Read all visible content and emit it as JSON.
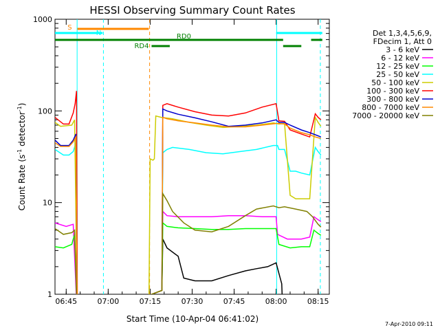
{
  "chart_data": {
    "type": "line",
    "title": "HESSI Observing Summary Count Rates",
    "xlabel": "Start Time (10-Apr-04 06:41:02)",
    "ylabel_main": "Count Rate (s",
    "ylabel_sup1": "-1",
    "ylabel_mid": " detector",
    "ylabel_sup2": "-1",
    "ylabel_end": ")",
    "y_scale": "log",
    "ylim": [
      1,
      1000
    ],
    "xlim_min": [
      6.7,
      8.3
    ],
    "x_unit": "minutes since 06:41:02",
    "xticks": [
      {
        "t": 4,
        "label": "06:45"
      },
      {
        "t": 19,
        "label": "07:00"
      },
      {
        "t": 34,
        "label": "07:15"
      },
      {
        "t": 49,
        "label": "07:30"
      },
      {
        "t": 64,
        "label": "07:45"
      },
      {
        "t": 79,
        "label": "08:00"
      },
      {
        "t": 94,
        "label": "08:15"
      }
    ],
    "yticks": [
      {
        "v": 1,
        "label": "1"
      },
      {
        "v": 10,
        "label": "10"
      },
      {
        "v": 100,
        "label": "100"
      },
      {
        "v": 1000,
        "label": "1000"
      }
    ],
    "legend": {
      "header1": "Det 1,3,4,5,6,9,",
      "header2": "FDecim 1, Att 0",
      "placement": "right"
    },
    "series": [
      {
        "name": "3 - 6 keV",
        "color": "#000000",
        "points": [
          [
            38.2,
            1.1
          ],
          [
            38.5,
            4
          ],
          [
            40,
            3.2
          ],
          [
            44,
            2.6
          ],
          [
            46,
            1.5
          ],
          [
            50,
            1.4
          ],
          [
            56,
            1.4
          ],
          [
            62,
            1.6
          ],
          [
            68,
            1.8
          ],
          [
            72,
            1.9
          ],
          [
            76,
            2.0
          ],
          [
            79,
            2.2
          ],
          [
            81,
            1.3
          ],
          [
            81.5,
            0.5
          ]
        ]
      },
      {
        "name": "6 - 12 keV",
        "color": "#ff00ff",
        "points": [
          [
            0,
            6
          ],
          [
            4,
            5.5
          ],
          [
            6.5,
            5.8
          ],
          [
            8,
            0.5
          ],
          [
            38.2,
            1.1
          ],
          [
            38.5,
            8
          ],
          [
            40,
            7.2
          ],
          [
            44,
            7.0
          ],
          [
            50,
            7.0
          ],
          [
            56,
            7.0
          ],
          [
            62,
            7.2
          ],
          [
            68,
            7.2
          ],
          [
            74,
            7.0
          ],
          [
            79,
            7.0
          ],
          [
            79.5,
            4.5
          ],
          [
            83,
            4.0
          ],
          [
            88,
            4.0
          ],
          [
            91,
            4.2
          ],
          [
            92.5,
            7.0
          ],
          [
            94,
            6.5
          ],
          [
            95,
            6.2
          ]
        ]
      },
      {
        "name": "12 - 25 keV",
        "color": "#00ff00",
        "points": [
          [
            0,
            3.3
          ],
          [
            3,
            3.2
          ],
          [
            6,
            3.5
          ],
          [
            7,
            4.5
          ],
          [
            8,
            0.5
          ],
          [
            38.2,
            1.1
          ],
          [
            38.5,
            6
          ],
          [
            40,
            5.5
          ],
          [
            44,
            5.3
          ],
          [
            50,
            5.2
          ],
          [
            56,
            5.1
          ],
          [
            62,
            5.1
          ],
          [
            68,
            5.2
          ],
          [
            74,
            5.2
          ],
          [
            79,
            5.2
          ],
          [
            80,
            3.5
          ],
          [
            84,
            3.2
          ],
          [
            88,
            3.3
          ],
          [
            91,
            3.3
          ],
          [
            92.5,
            5.0
          ],
          [
            94,
            4.6
          ],
          [
            95,
            4.4
          ]
        ]
      },
      {
        "name": "25 - 50 keV",
        "color": "#00ffff",
        "points": [
          [
            0,
            38
          ],
          [
            3,
            33
          ],
          [
            5,
            33
          ],
          [
            6.5,
            36
          ],
          [
            7.5,
            45
          ],
          [
            8,
            0.5
          ],
          [
            38.2,
            1.1
          ],
          [
            38.5,
            35
          ],
          [
            40,
            38
          ],
          [
            42,
            40
          ],
          [
            48,
            38
          ],
          [
            54,
            35
          ],
          [
            60,
            34
          ],
          [
            66,
            36
          ],
          [
            72,
            38
          ],
          [
            78,
            42
          ],
          [
            79.5,
            42
          ],
          [
            80,
            38
          ],
          [
            82,
            38
          ],
          [
            84,
            22
          ],
          [
            86,
            22
          ],
          [
            88,
            21
          ],
          [
            91,
            20
          ],
          [
            93,
            40
          ],
          [
            94,
            36
          ],
          [
            95,
            33
          ]
        ]
      },
      {
        "name": "50 - 100 keV",
        "color": "#cccc00",
        "points": [
          [
            0,
            75
          ],
          [
            2,
            68
          ],
          [
            6,
            70
          ],
          [
            7,
            80
          ],
          [
            8,
            0.5
          ],
          [
            33.5,
            0.5
          ],
          [
            34,
            30
          ],
          [
            35,
            29
          ],
          [
            35.5,
            30
          ],
          [
            36,
            88
          ],
          [
            38,
            85
          ],
          [
            42,
            82
          ],
          [
            48,
            75
          ],
          [
            54,
            70
          ],
          [
            60,
            66
          ],
          [
            66,
            68
          ],
          [
            72,
            70
          ],
          [
            78,
            74
          ],
          [
            80,
            72
          ],
          [
            82,
            73
          ],
          [
            84,
            12
          ],
          [
            86,
            11
          ],
          [
            88,
            11
          ],
          [
            91,
            11
          ],
          [
            93,
            85
          ],
          [
            94,
            75
          ],
          [
            95,
            68
          ]
        ]
      },
      {
        "name": "100 - 300 keV",
        "color": "#ff0000",
        "points": [
          [
            0,
            85
          ],
          [
            3,
            72
          ],
          [
            5,
            72
          ],
          [
            6.5,
            95
          ],
          [
            7.2,
            120
          ],
          [
            7.7,
            165
          ],
          [
            8,
            0.5
          ],
          [
            38.2,
            1.1
          ],
          [
            38.5,
            115
          ],
          [
            40,
            120
          ],
          [
            44,
            110
          ],
          [
            50,
            98
          ],
          [
            56,
            90
          ],
          [
            62,
            88
          ],
          [
            68,
            95
          ],
          [
            74,
            110
          ],
          [
            79,
            120
          ],
          [
            80,
            78
          ],
          [
            82,
            77
          ],
          [
            84,
            62
          ],
          [
            88,
            56
          ],
          [
            91,
            52
          ],
          [
            93,
            93
          ],
          [
            94,
            85
          ],
          [
            95,
            80
          ]
        ]
      },
      {
        "name": "300 - 800 keV",
        "color": "#0000cc",
        "points": [
          [
            0,
            48
          ],
          [
            2,
            42
          ],
          [
            5,
            42
          ],
          [
            6.5,
            48
          ],
          [
            7.5,
            56
          ],
          [
            8,
            0.5
          ],
          [
            38.2,
            1.1
          ],
          [
            38.5,
            105
          ],
          [
            40,
            100
          ],
          [
            44,
            92
          ],
          [
            50,
            84
          ],
          [
            56,
            76
          ],
          [
            62,
            68
          ],
          [
            68,
            70
          ],
          [
            74,
            74
          ],
          [
            79,
            80
          ],
          [
            80,
            75
          ],
          [
            82,
            75
          ],
          [
            84,
            70
          ],
          [
            88,
            62
          ],
          [
            91,
            58
          ],
          [
            93,
            55
          ],
          [
            95,
            52
          ]
        ]
      },
      {
        "name": "800 - 7000 keV",
        "color": "#ff8800",
        "points": [
          [
            0,
            45
          ],
          [
            2,
            41
          ],
          [
            5,
            41
          ],
          [
            6.5,
            46
          ],
          [
            7.5,
            52
          ],
          [
            8,
            0.5
          ],
          [
            38.2,
            1.1
          ],
          [
            38.5,
            85
          ],
          [
            40,
            82
          ],
          [
            44,
            78
          ],
          [
            50,
            74
          ],
          [
            56,
            70
          ],
          [
            62,
            67
          ],
          [
            68,
            67
          ],
          [
            74,
            70
          ],
          [
            79,
            73
          ],
          [
            80,
            73
          ],
          [
            82,
            72
          ],
          [
            84,
            65
          ],
          [
            88,
            58
          ],
          [
            91,
            55
          ],
          [
            93,
            52
          ],
          [
            95,
            50
          ]
        ]
      },
      {
        "name": "7000 - 20000 keV",
        "color": "#808000",
        "points": [
          [
            0,
            5.2
          ],
          [
            3,
            4.5
          ],
          [
            6,
            4.7
          ],
          [
            7,
            5
          ],
          [
            8,
            0.5
          ],
          [
            38.2,
            1.1
          ],
          [
            38.5,
            12.5
          ],
          [
            40,
            10.5
          ],
          [
            42,
            8
          ],
          [
            46,
            6
          ],
          [
            50,
            5
          ],
          [
            56,
            4.8
          ],
          [
            62,
            5.5
          ],
          [
            68,
            7.2
          ],
          [
            72,
            8.5
          ],
          [
            78,
            9.2
          ],
          [
            80,
            8.8
          ],
          [
            82,
            9.0
          ],
          [
            86,
            8.5
          ],
          [
            90,
            8.0
          ],
          [
            92,
            7.0
          ],
          [
            94,
            5.8
          ],
          [
            95,
            5.4
          ]
        ]
      }
    ],
    "flag_bars": [
      {
        "label": "S",
        "color": "#ff8800",
        "t0": 8,
        "t1": 33.5,
        "y": 0
      },
      {
        "label": "N",
        "color": "#00ffff",
        "t0": 0,
        "t1": 17,
        "y": 1
      },
      {
        "label": "",
        "color": "#00ffff",
        "t0": 79,
        "t1": 95.5,
        "y": 1
      },
      {
        "label": "RD0",
        "color": "#008000",
        "t0": 0,
        "t1": 81.5,
        "y": 2
      },
      {
        "label": "",
        "color": "#008000",
        "t0": 91.5,
        "t1": 95.5,
        "y": 2
      },
      {
        "label": "RD4",
        "color": "#008000",
        "t0": 34.5,
        "t1": 41,
        "y": 3
      },
      {
        "label": "",
        "color": "#008000",
        "t0": 81.5,
        "t1": 88,
        "y": 3
      }
    ],
    "vlines": [
      {
        "t": 7.9,
        "color": "#00ffff",
        "dash": false
      },
      {
        "t": 17.3,
        "color": "#00ffff",
        "dash": true
      },
      {
        "t": 33.8,
        "color": "#ff8800",
        "dash": true
      },
      {
        "t": 79.2,
        "color": "#00ffff",
        "dash": false
      },
      {
        "t": 94.8,
        "color": "#00ffff",
        "dash": true
      }
    ],
    "footer": "7-Apr-2010 09:11"
  }
}
